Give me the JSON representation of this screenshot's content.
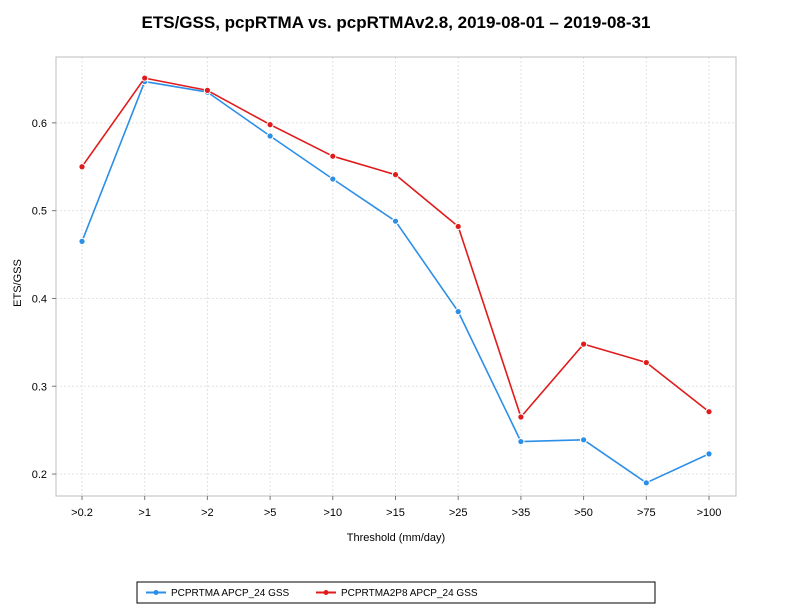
{
  "chart_data": {
    "type": "line",
    "title": "ETS/GSS, pcpRTMA vs. pcpRTMAv2.8, 2019-08-01 – 2019-08-31",
    "xlabel": "Threshold (mm/day)",
    "ylabel": "ETS/GSS",
    "categories": [
      ">0.2",
      ">1",
      ">2",
      ">5",
      ">10",
      ">15",
      ">25",
      ">35",
      ">50",
      ">75",
      ">100"
    ],
    "ylim": [
      0.175,
      0.675
    ],
    "yticks": [
      0.2,
      0.3,
      0.4,
      0.5,
      0.6
    ],
    "ytick_labels": [
      "0.2",
      "0.3",
      "0.4",
      "0.5",
      "0.6"
    ],
    "grid": true,
    "legend_position": "bottom",
    "series": [
      {
        "name": "PCPRTMA APCP_24 GSS",
        "color": "#2b8fe8",
        "values": [
          0.465,
          0.647,
          0.635,
          0.585,
          0.536,
          0.488,
          0.385,
          0.237,
          0.239,
          0.19,
          0.223
        ]
      },
      {
        "name": "PCPRTMA2P8 APCP_24 GSS",
        "color": "#e01b1b",
        "values": [
          0.55,
          0.651,
          0.637,
          0.598,
          0.562,
          0.541,
          0.482,
          0.265,
          0.348,
          0.327,
          0.271
        ]
      }
    ]
  }
}
